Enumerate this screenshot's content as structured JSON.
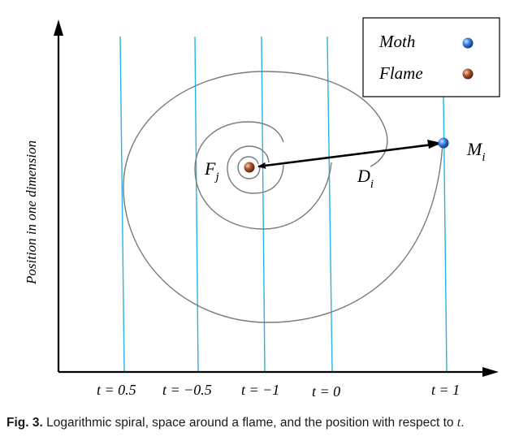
{
  "figure": {
    "y_axis_label": "Position in one dimension",
    "t_labels": [
      "t = 0.5",
      "t = −0.5",
      "t = −1",
      "t = 0",
      "t = 1"
    ],
    "flame_symbol": "F",
    "flame_subscript": "j",
    "moth_symbol": "M",
    "moth_subscript": "i",
    "distance_symbol": "D",
    "distance_subscript": "i",
    "legend": {
      "moth_label": "Moth",
      "flame_label": "Flame"
    },
    "colors": {
      "vertical_lines": "#29b3ea",
      "spiral": "#7a7a7a",
      "moth": "#2f6fd6",
      "flame": "#b0582e",
      "axes": "#000000"
    }
  },
  "caption": {
    "prefix": "Fig. 3.",
    "text": "Logarithmic spiral, space around a flame, and the position with respect to",
    "variable": "t",
    "end": "."
  }
}
